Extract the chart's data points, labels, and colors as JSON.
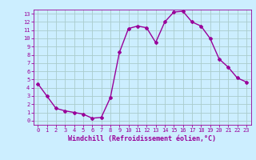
{
  "x": [
    0,
    1,
    2,
    3,
    4,
    5,
    6,
    7,
    8,
    9,
    10,
    11,
    12,
    13,
    14,
    15,
    16,
    17,
    18,
    19,
    20,
    21,
    22,
    23
  ],
  "y": [
    4.5,
    3.0,
    1.5,
    1.2,
    1.0,
    0.8,
    0.3,
    0.4,
    2.8,
    8.3,
    11.2,
    11.5,
    11.3,
    9.5,
    12.0,
    13.2,
    13.3,
    12.0,
    11.5,
    10.0,
    7.5,
    6.5,
    5.2,
    4.7
  ],
  "color": "#990099",
  "bg_color": "#cceeff",
  "grid_color": "#aacccc",
  "xlabel": "Windchill (Refroidissement éolien,°C)",
  "xlim": [
    -0.5,
    23.5
  ],
  "ylim": [
    -0.5,
    13.5
  ],
  "xticks": [
    0,
    1,
    2,
    3,
    4,
    5,
    6,
    7,
    8,
    9,
    10,
    11,
    12,
    13,
    14,
    15,
    16,
    17,
    18,
    19,
    20,
    21,
    22,
    23
  ],
  "yticks": [
    0,
    1,
    2,
    3,
    4,
    5,
    6,
    7,
    8,
    9,
    10,
    11,
    12,
    13
  ],
  "marker": "D",
  "markersize": 2,
  "linewidth": 1.0,
  "tick_fontsize": 5,
  "xlabel_fontsize": 6
}
